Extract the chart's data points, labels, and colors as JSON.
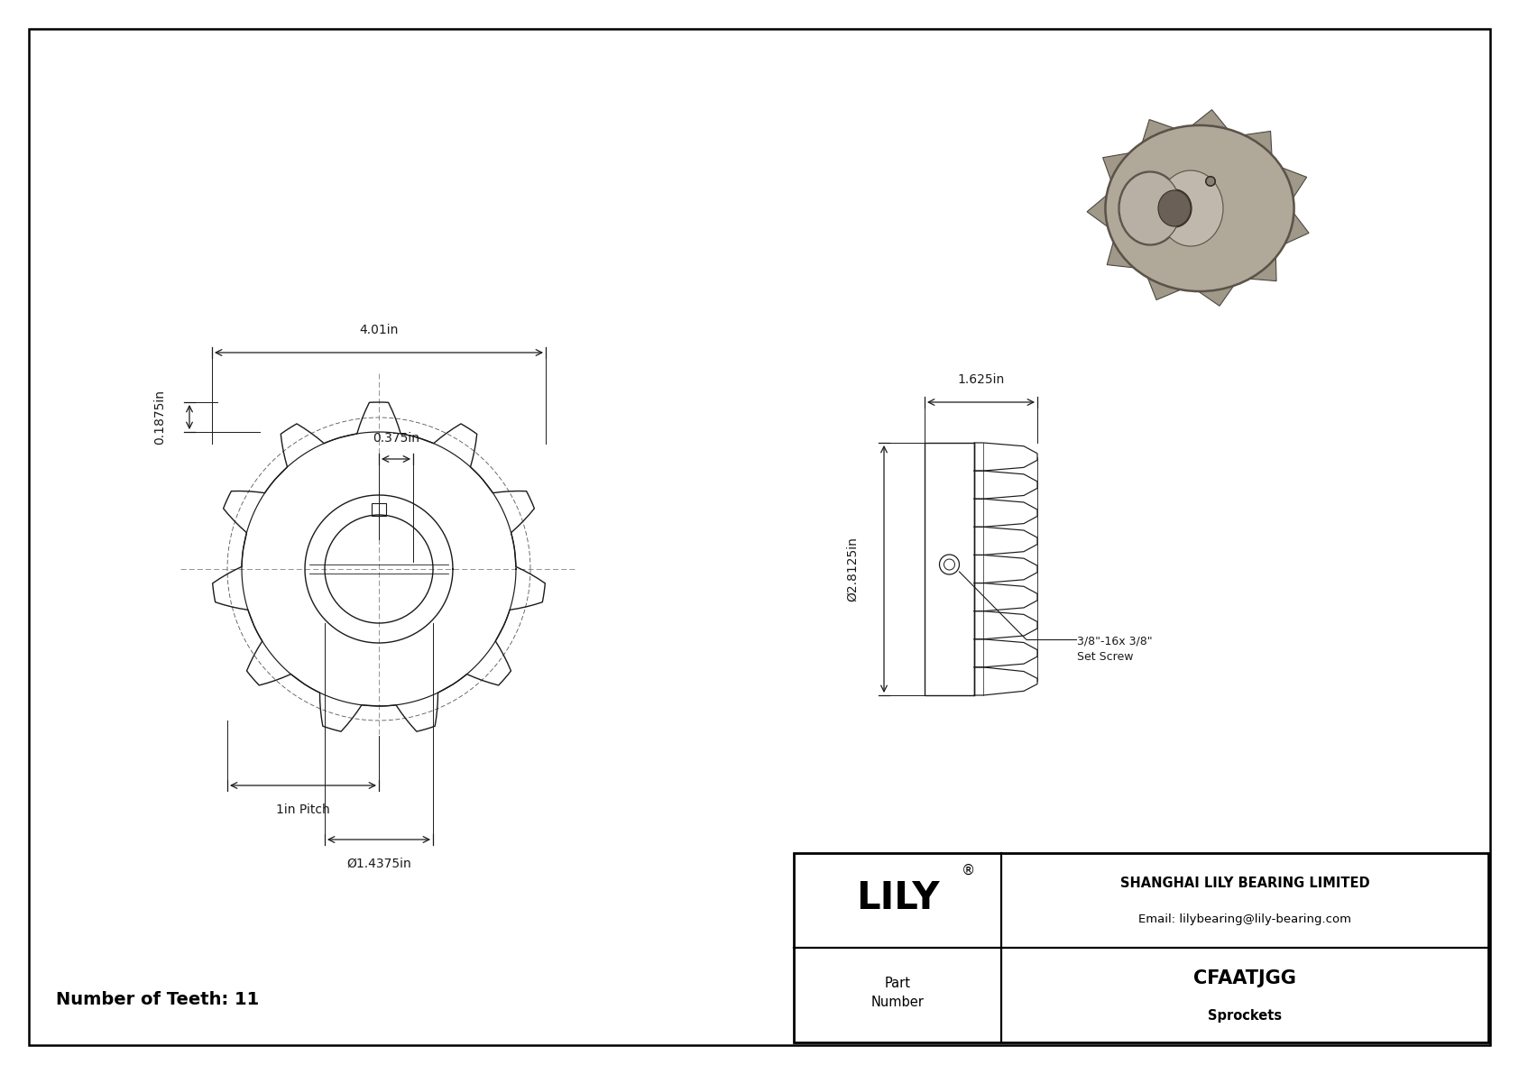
{
  "bg_color": "#ffffff",
  "border_color": "#000000",
  "dark": "#1a1a1a",
  "title": "CFAATJGG",
  "subtitle": "Sprockets",
  "company": "SHANGHAI LILY BEARING LIMITED",
  "email": "Email: lilybearing@lily-bearing.com",
  "part_label": "Part\nNumber",
  "num_teeth": "Number of Teeth: 11",
  "dim_outer": "4.01in",
  "dim_hub": "0.375in",
  "dim_tooth_height": "0.1875in",
  "dim_pitch": "1in Pitch",
  "dim_bore": "Ø1.4375in",
  "dim_side_width": "1.625in",
  "dim_side_height": "Ø2.8125in",
  "dim_setscrew": "3/8\"-16x 3/8\"\nSet Screw"
}
